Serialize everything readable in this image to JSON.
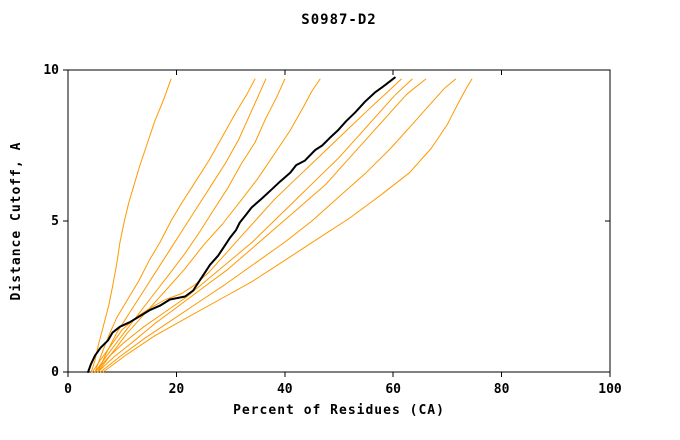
{
  "chart_data": {
    "type": "line",
    "title": "S0987-D2",
    "xlabel": "Percent of Residues (CA)",
    "ylabel": "Distance Cutoff, A",
    "xlim": [
      0,
      100
    ],
    "ylim": [
      0,
      10
    ],
    "xticks": [
      0,
      20,
      40,
      60,
      80,
      100
    ],
    "yticks": [
      0,
      5,
      10
    ],
    "grid": false,
    "legend": "none",
    "colors": {
      "comparison_line": "#ff9900",
      "highlight_line": "#000000",
      "axis": "#000000",
      "background": "#ffffff"
    },
    "series": [
      {
        "name": "curve-orange-1",
        "color": "#ff9900",
        "width": 1,
        "points": [
          [
            4.3,
            0
          ],
          [
            5,
            0.4
          ],
          [
            5.6,
            0.9
          ],
          [
            6.5,
            1.5
          ],
          [
            7.5,
            2.2
          ],
          [
            8.2,
            2.8
          ],
          [
            9,
            3.6
          ],
          [
            9.6,
            4.3
          ],
          [
            10.4,
            5.0
          ],
          [
            11.2,
            5.6
          ],
          [
            12.2,
            6.2
          ],
          [
            13.2,
            6.8
          ],
          [
            14.5,
            7.5
          ],
          [
            16,
            8.3
          ],
          [
            17.6,
            9.0
          ],
          [
            19,
            9.7
          ]
        ]
      },
      {
        "name": "curve-orange-2",
        "color": "#ff9900",
        "width": 1,
        "points": [
          [
            5,
            0
          ],
          [
            6,
            0.5
          ],
          [
            7.5,
            1.2
          ],
          [
            9,
            1.8
          ],
          [
            11,
            2.4
          ],
          [
            13,
            3.0
          ],
          [
            15,
            3.7
          ],
          [
            17,
            4.3
          ],
          [
            19,
            5.0
          ],
          [
            21,
            5.6
          ],
          [
            23.5,
            6.3
          ],
          [
            26,
            7.0
          ],
          [
            28.5,
            7.8
          ],
          [
            31,
            8.6
          ],
          [
            33,
            9.2
          ],
          [
            34.5,
            9.7
          ]
        ]
      },
      {
        "name": "curve-orange-3",
        "color": "#ff9900",
        "width": 1,
        "points": [
          [
            5.5,
            0
          ],
          [
            7,
            0.6
          ],
          [
            9,
            1.3
          ],
          [
            11.5,
            2.0
          ],
          [
            14,
            2.7
          ],
          [
            16.5,
            3.4
          ],
          [
            19,
            4.1
          ],
          [
            21.5,
            4.8
          ],
          [
            24,
            5.5
          ],
          [
            26.5,
            6.2
          ],
          [
            29,
            6.9
          ],
          [
            31.5,
            7.7
          ],
          [
            33.5,
            8.5
          ],
          [
            35,
            9.1
          ],
          [
            36.5,
            9.7
          ]
        ]
      },
      {
        "name": "curve-orange-4",
        "color": "#ff9900",
        "width": 1,
        "points": [
          [
            5,
            0
          ],
          [
            7,
            0.5
          ],
          [
            9.5,
            1.1
          ],
          [
            12.5,
            1.8
          ],
          [
            15.5,
            2.5
          ],
          [
            18.5,
            3.2
          ],
          [
            21.5,
            3.9
          ],
          [
            24.5,
            4.7
          ],
          [
            27,
            5.4
          ],
          [
            29.5,
            6.1
          ],
          [
            32,
            6.9
          ],
          [
            34.5,
            7.6
          ],
          [
            36.5,
            8.4
          ],
          [
            38.5,
            9.1
          ],
          [
            40,
            9.7
          ]
        ]
      },
      {
        "name": "curve-orange-5",
        "color": "#ff9900",
        "width": 1,
        "points": [
          [
            5.5,
            0
          ],
          [
            8,
            0.6
          ],
          [
            11,
            1.3
          ],
          [
            14.5,
            2.0
          ],
          [
            18,
            2.7
          ],
          [
            21.5,
            3.4
          ],
          [
            25,
            4.2
          ],
          [
            28.5,
            4.9
          ],
          [
            32,
            5.7
          ],
          [
            35,
            6.4
          ],
          [
            38,
            7.2
          ],
          [
            41,
            8.0
          ],
          [
            43.5,
            8.8
          ],
          [
            45,
            9.3
          ],
          [
            46.5,
            9.7
          ]
        ]
      },
      {
        "name": "curve-orange-6",
        "color": "#ff9900",
        "width": 1,
        "points": [
          [
            4.5,
            0
          ],
          [
            6,
            0.4
          ],
          [
            8,
            0.9
          ],
          [
            10,
            1.4
          ],
          [
            12.5,
            1.8
          ],
          [
            15,
            2.1
          ],
          [
            18,
            2.4
          ],
          [
            21,
            2.6
          ],
          [
            23.5,
            2.9
          ],
          [
            26,
            3.3
          ],
          [
            29,
            3.9
          ],
          [
            32,
            4.5
          ],
          [
            35,
            5.1
          ],
          [
            38,
            5.7
          ],
          [
            41.5,
            6.3
          ],
          [
            45,
            6.9
          ],
          [
            48.5,
            7.5
          ],
          [
            52,
            8.1
          ],
          [
            55.5,
            8.7
          ],
          [
            58.5,
            9.2
          ],
          [
            61.5,
            9.7
          ]
        ]
      },
      {
        "name": "curve-orange-7",
        "color": "#ff9900",
        "width": 1,
        "points": [
          [
            5,
            0
          ],
          [
            7.5,
            0.5
          ],
          [
            10.5,
            1.0
          ],
          [
            14,
            1.5
          ],
          [
            18,
            2.0
          ],
          [
            22,
            2.5
          ],
          [
            26,
            3.1
          ],
          [
            30,
            3.7
          ],
          [
            34,
            4.3
          ],
          [
            38,
            5.0
          ],
          [
            42,
            5.7
          ],
          [
            46,
            6.4
          ],
          [
            50,
            7.1
          ],
          [
            54,
            7.9
          ],
          [
            57.5,
            8.6
          ],
          [
            60.5,
            9.2
          ],
          [
            63.5,
            9.7
          ]
        ]
      },
      {
        "name": "curve-orange-8",
        "color": "#ff9900",
        "width": 1,
        "points": [
          [
            5.5,
            0
          ],
          [
            8.5,
            0.5
          ],
          [
            12,
            1.0
          ],
          [
            16,
            1.6
          ],
          [
            20.5,
            2.2
          ],
          [
            25,
            2.8
          ],
          [
            29.5,
            3.4
          ],
          [
            34,
            4.1
          ],
          [
            38.5,
            4.8
          ],
          [
            43,
            5.5
          ],
          [
            47.5,
            6.2
          ],
          [
            51.5,
            7.0
          ],
          [
            55.5,
            7.8
          ],
          [
            59.5,
            8.6
          ],
          [
            62.5,
            9.2
          ],
          [
            66,
            9.7
          ]
        ]
      },
      {
        "name": "curve-orange-9",
        "color": "#ff9900",
        "width": 1,
        "points": [
          [
            6,
            0
          ],
          [
            9.5,
            0.5
          ],
          [
            14,
            1.1
          ],
          [
            19,
            1.7
          ],
          [
            24,
            2.3
          ],
          [
            29,
            2.9
          ],
          [
            34.5,
            3.6
          ],
          [
            40,
            4.3
          ],
          [
            45,
            5.0
          ],
          [
            50,
            5.8
          ],
          [
            55,
            6.6
          ],
          [
            59.5,
            7.4
          ],
          [
            63.5,
            8.2
          ],
          [
            67,
            8.9
          ],
          [
            69.5,
            9.4
          ],
          [
            71.5,
            9.7
          ]
        ]
      },
      {
        "name": "curve-orange-10",
        "color": "#ff9900",
        "width": 1,
        "points": [
          [
            6.5,
            0
          ],
          [
            11,
            0.6
          ],
          [
            16,
            1.2
          ],
          [
            22,
            1.8
          ],
          [
            28,
            2.4
          ],
          [
            34,
            3.0
          ],
          [
            40,
            3.7
          ],
          [
            46,
            4.4
          ],
          [
            52,
            5.1
          ],
          [
            58,
            5.9
          ],
          [
            63,
            6.6
          ],
          [
            67,
            7.4
          ],
          [
            70,
            8.2
          ],
          [
            72,
            8.9
          ],
          [
            73.5,
            9.4
          ],
          [
            74.5,
            9.7
          ]
        ]
      },
      {
        "name": "curve-black-highlight",
        "color": "#000000",
        "width": 2,
        "points": [
          [
            3.7,
            0
          ],
          [
            4.2,
            0.25
          ],
          [
            5,
            0.55
          ],
          [
            6,
            0.8
          ],
          [
            7.4,
            1.05
          ],
          [
            8.2,
            1.3
          ],
          [
            9.6,
            1.5
          ],
          [
            11.4,
            1.65
          ],
          [
            13.7,
            1.9
          ],
          [
            15.1,
            2.05
          ],
          [
            17,
            2.2
          ],
          [
            18.8,
            2.4
          ],
          [
            21.6,
            2.5
          ],
          [
            23.1,
            2.7
          ],
          [
            24,
            2.95
          ],
          [
            25.3,
            3.3
          ],
          [
            26.2,
            3.55
          ],
          [
            27.7,
            3.85
          ],
          [
            28.8,
            4.15
          ],
          [
            29.9,
            4.45
          ],
          [
            31,
            4.7
          ],
          [
            31.7,
            4.95
          ],
          [
            32.8,
            5.2
          ],
          [
            33.9,
            5.45
          ],
          [
            35.8,
            5.75
          ],
          [
            37.6,
            6.05
          ],
          [
            39.1,
            6.3
          ],
          [
            41,
            6.6
          ],
          [
            42.1,
            6.85
          ],
          [
            43.7,
            7.0
          ],
          [
            45.6,
            7.35
          ],
          [
            46.9,
            7.5
          ],
          [
            48.3,
            7.75
          ],
          [
            49.8,
            8.0
          ],
          [
            51.3,
            8.3
          ],
          [
            53,
            8.6
          ],
          [
            54.8,
            8.95
          ],
          [
            56.6,
            9.25
          ],
          [
            58.5,
            9.5
          ],
          [
            60.3,
            9.75
          ]
        ]
      }
    ]
  }
}
